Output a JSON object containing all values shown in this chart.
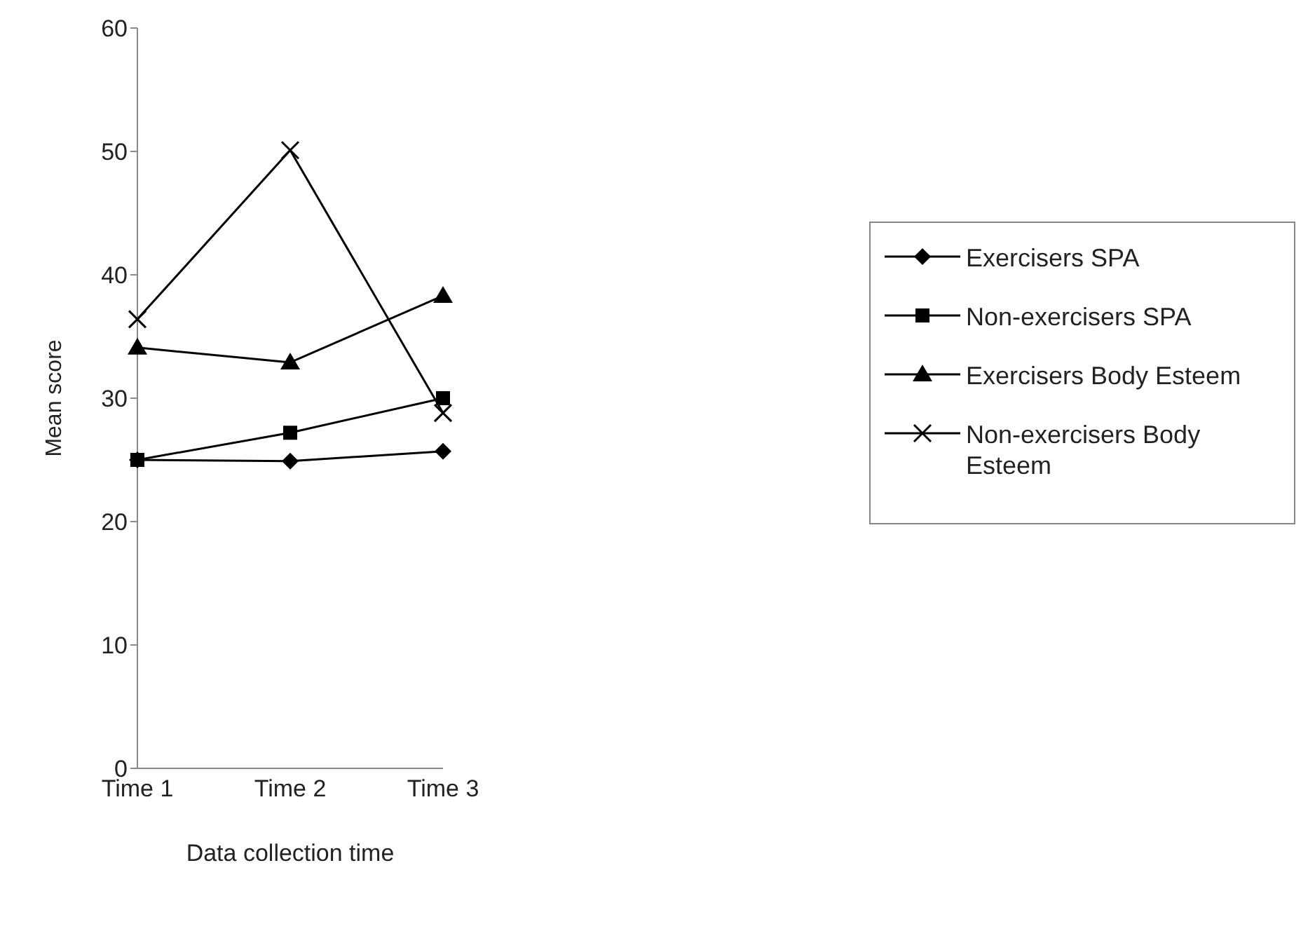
{
  "chart_data": {
    "type": "line",
    "xlabel": "Data collection time",
    "ylabel": "Mean score",
    "categories": [
      "Time 1",
      "Time 2",
      "Time 3"
    ],
    "series": [
      {
        "name": "Exercisers SPA",
        "color": "#000000",
        "marker": "diamond",
        "values": [
          25.0,
          24.9,
          25.7
        ]
      },
      {
        "name": "Non-exercisers SPA",
        "color": "#000000",
        "marker": "square",
        "values": [
          25.0,
          27.2,
          30.0
        ]
      },
      {
        "name": "Exercisers Body Esteem",
        "color": "#000000",
        "marker": "triangle",
        "values": [
          34.1,
          32.9,
          38.3
        ]
      },
      {
        "name": "Non-exercisers Body Esteem",
        "color": "#000000",
        "marker": "cross",
        "values": [
          36.4,
          50.1,
          28.8
        ]
      }
    ],
    "ylim": [
      0,
      60
    ],
    "yticks": [
      0,
      10,
      20,
      30,
      40,
      50,
      60
    ],
    "grid": false,
    "legend": "right",
    "line_style": "solid"
  }
}
